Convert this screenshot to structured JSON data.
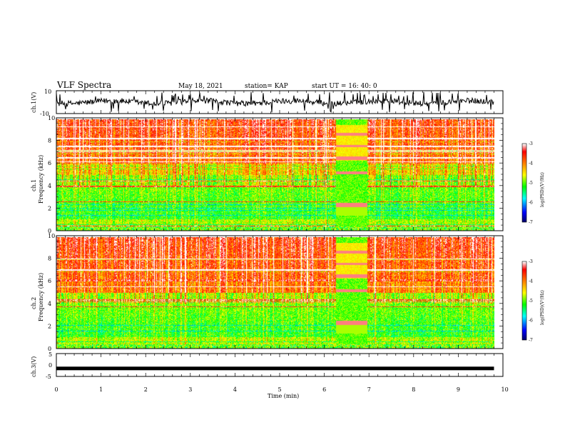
{
  "header": {
    "title": "VLF Spectra",
    "date": "May 18, 2021",
    "station": "station= KAP",
    "start": "start UT =  16: 40: 0"
  },
  "chart_data": [
    {
      "type": "line",
      "ylabel": "ch.1(V)",
      "ylim": [
        -10,
        10
      ],
      "ytick_labels": [
        "10",
        "-10"
      ],
      "xlim": [
        0,
        10
      ],
      "description_series": "noisy waveform, mostly between -3 and 3 V with spikes to about -8 and +9 V",
      "x_end": 9.8
    },
    {
      "type": "heatmap",
      "ylabel_line1": "ch.1",
      "ylabel_line2": "Frequency  (kHz)",
      "ylim": [
        0,
        10
      ],
      "ytick_labels": [
        "0",
        "2",
        "4",
        "6",
        "8",
        "10"
      ],
      "xlim": [
        0,
        10
      ],
      "x_end": 9.8,
      "colorbar": {
        "label": "log(PSD)(V²/Hz)",
        "range": [
          -7,
          -3
        ],
        "ticks": [
          "-3",
          "-4",
          "-5",
          "-6",
          "-7"
        ]
      }
    },
    {
      "type": "heatmap",
      "ylabel_line1": "ch.2",
      "ylabel_line2": "Frequency  (kHz)",
      "ylim": [
        0,
        10
      ],
      "ytick_labels": [
        "0",
        "2",
        "4",
        "6",
        "8",
        "10"
      ],
      "xlim": [
        0,
        10
      ],
      "x_end": 9.8,
      "colorbar": {
        "label": "log(PSD)(V²/Hz)",
        "range": [
          -7,
          -3
        ],
        "ticks": [
          "-3",
          "-4",
          "-5",
          "-6",
          "-7"
        ]
      }
    },
    {
      "type": "line",
      "ylabel": "ch.3(V)",
      "ylim": [
        -5,
        5
      ],
      "ytick_labels": [
        "5",
        "0",
        "-5"
      ],
      "xlim": [
        0,
        10
      ],
      "x_end": 9.8,
      "values_constant": -1.5
    }
  ],
  "xaxis": {
    "label": "Time  (min)",
    "ticks": [
      "0",
      "1",
      "2",
      "3",
      "4",
      "5",
      "6",
      "7",
      "8",
      "9",
      "10"
    ]
  },
  "colors": {
    "scale": [
      "#000080",
      "#0000ff",
      "#00ffff",
      "#00ff00",
      "#ffff00",
      "#ff8000",
      "#ff0000",
      "#ffffff"
    ]
  }
}
